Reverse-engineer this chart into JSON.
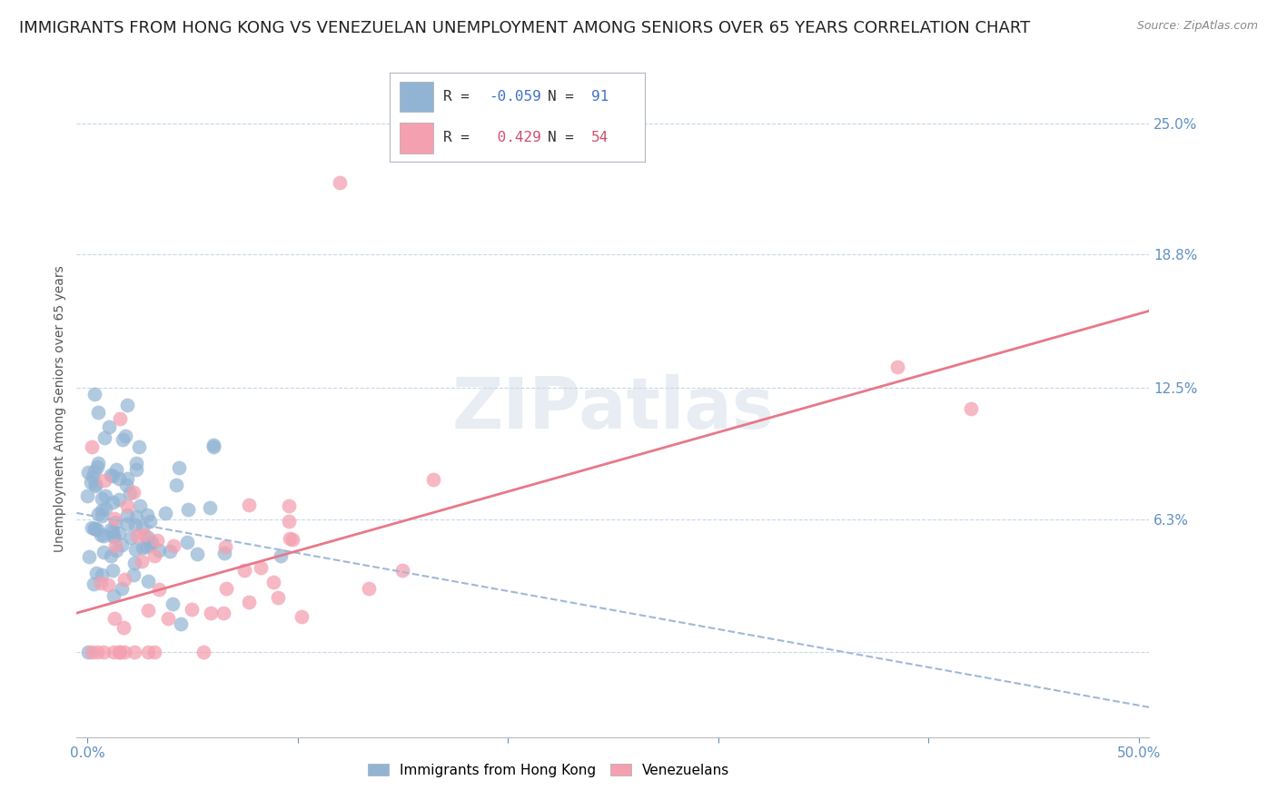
{
  "title": "IMMIGRANTS FROM HONG KONG VS VENEZUELAN UNEMPLOYMENT AMONG SENIORS OVER 65 YEARS CORRELATION CHART",
  "source": "Source: ZipAtlas.com",
  "ylabel": "Unemployment Among Seniors over 65 years",
  "xlim": [
    -0.005,
    0.505
  ],
  "ylim": [
    -0.04,
    0.27
  ],
  "x_ticks": [
    0.0,
    0.1,
    0.2,
    0.3,
    0.4,
    0.5
  ],
  "x_tick_labels": [
    "0.0%",
    "",
    "",
    "",
    "",
    "50.0%"
  ],
  "y_tick_right": [
    0.0,
    0.063,
    0.125,
    0.188,
    0.25
  ],
  "y_tick_right_labels": [
    "",
    "6.3%",
    "12.5%",
    "18.8%",
    "25.0%"
  ],
  "blue_color": "#92b4d4",
  "pink_color": "#f4a0b0",
  "blue_line_color": "#a0b8d8",
  "pink_line_color": "#e8788a",
  "watermark": "ZIPatlas",
  "blue_R": -0.059,
  "blue_N": 91,
  "pink_R": 0.429,
  "pink_N": 54,
  "title_fontsize": 13,
  "axis_label_fontsize": 10,
  "tick_fontsize": 11,
  "background_color": "#ffffff",
  "grid_color": "#c8d8e8",
  "right_label_color": "#6090c0",
  "blue_intercept": 0.065,
  "blue_slope": -0.18,
  "pink_intercept": 0.02,
  "pink_slope": 0.28
}
